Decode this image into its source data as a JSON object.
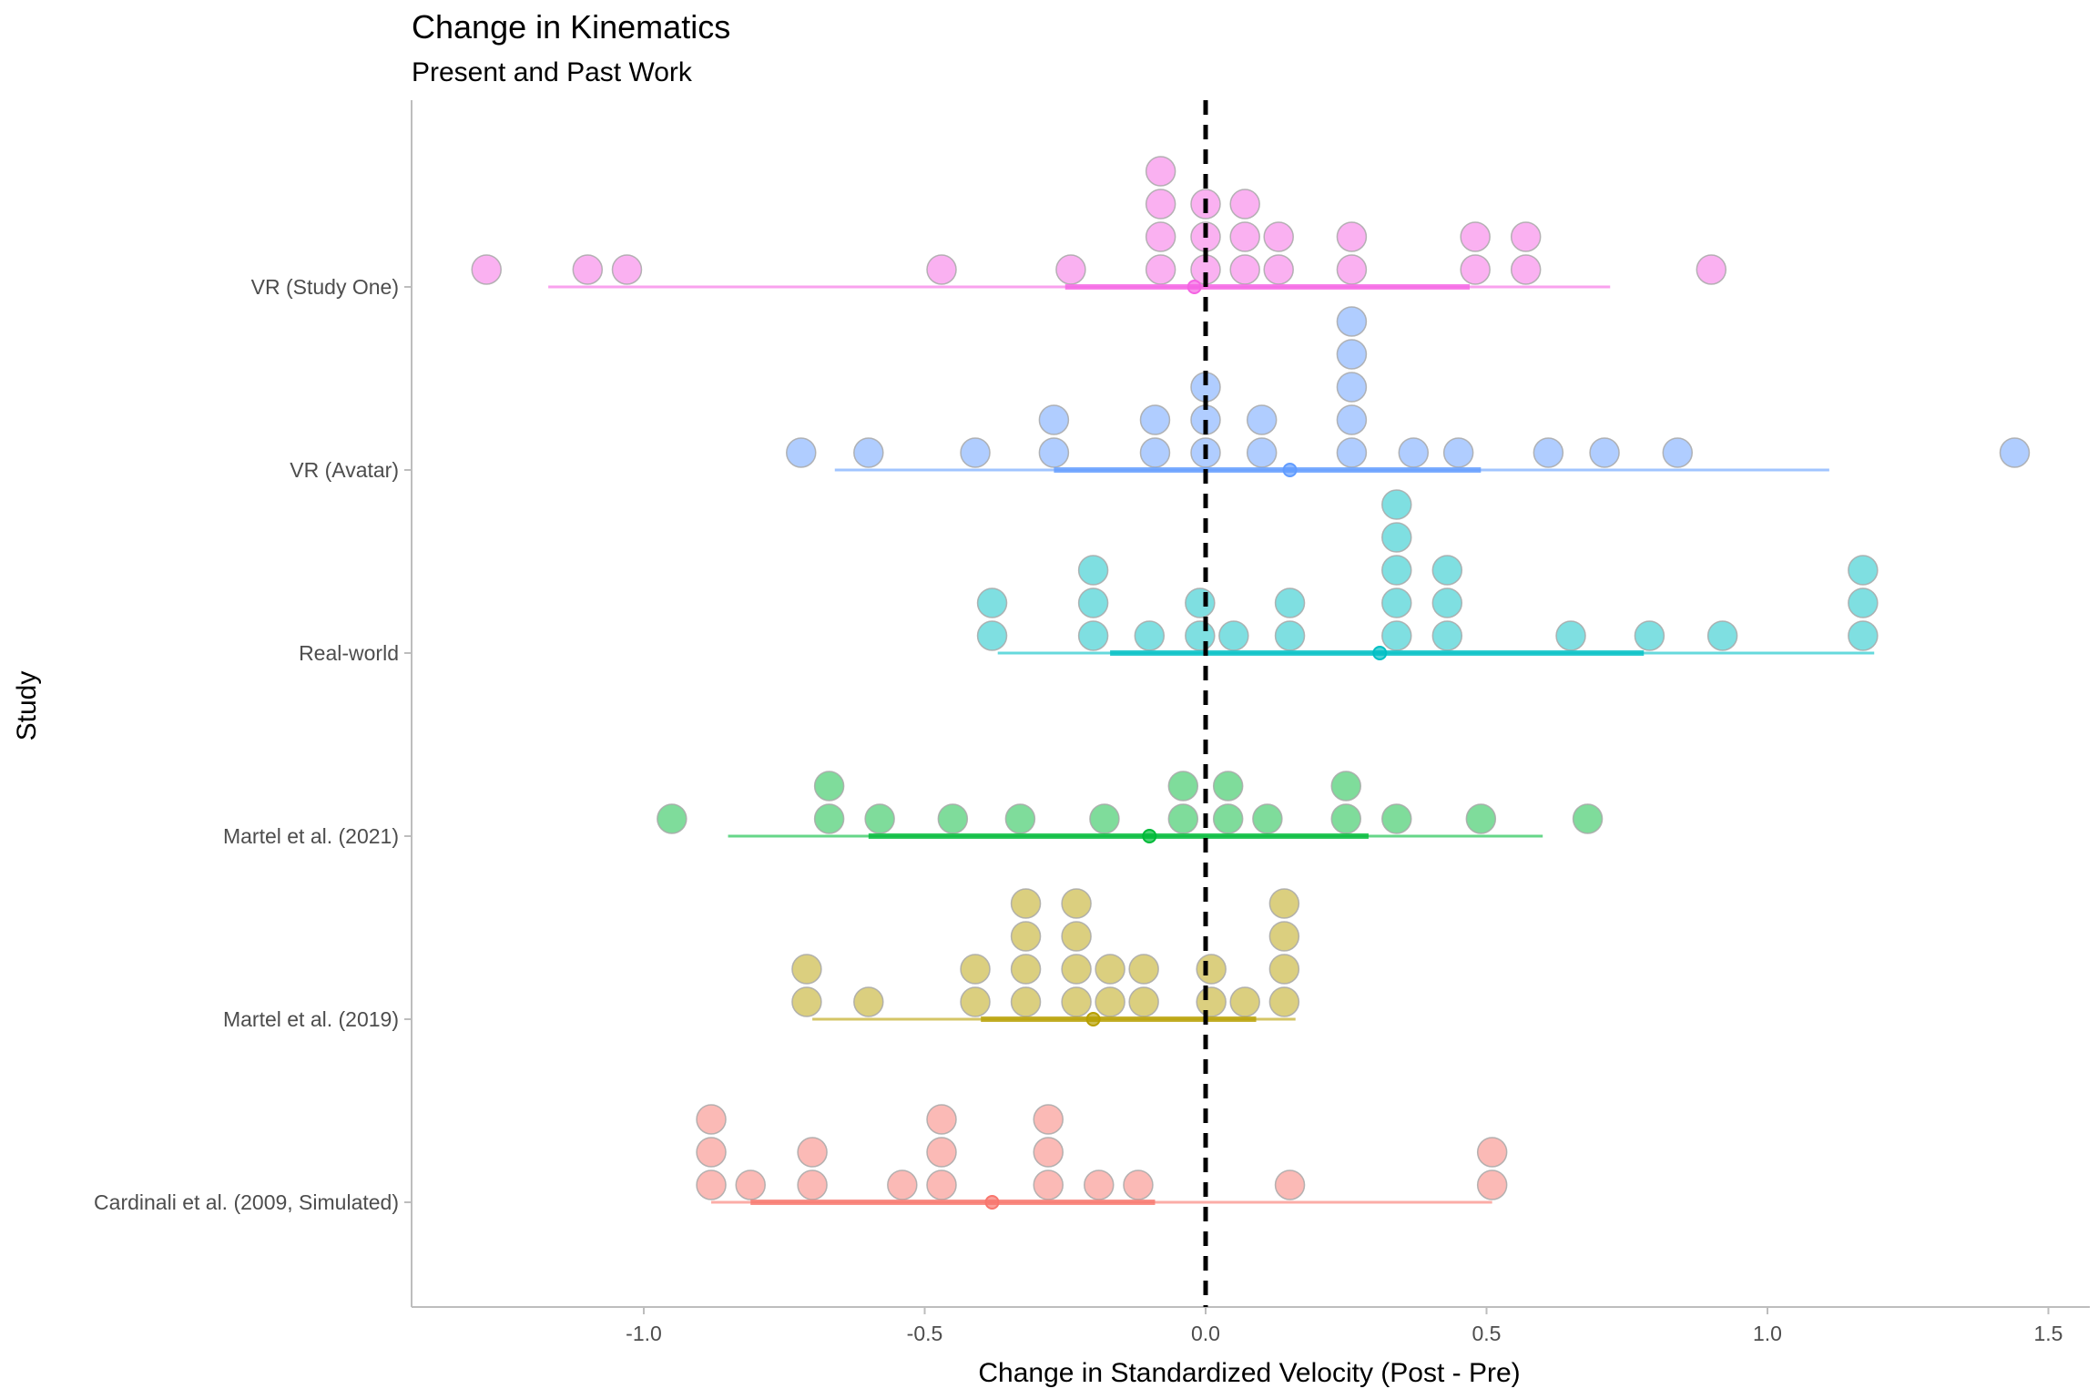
{
  "chart_data": {
    "type": "scatter",
    "title": "Change in Kinematics",
    "subtitle": "Present and Past Work",
    "xlabel": "Change in Standardized Velocity (Post - Pre)",
    "ylabel": "Study",
    "xlim": [
      -1.4,
      1.55
    ],
    "xticks": [
      -1.0,
      -0.5,
      0.0,
      0.5,
      1.0,
      1.5
    ],
    "xtick_labels": [
      "-1.0",
      "-0.5",
      "0.0",
      "0.5",
      "1.0",
      "1.5"
    ],
    "reference_line": {
      "x": 0.0,
      "style": "dashed",
      "color": "#000000"
    },
    "grid": false,
    "legend": "none",
    "series": [
      {
        "name": "Cardinali et al. (2009, Simulated)",
        "color": "#F8766D",
        "stacks": [
          {
            "x": -0.88,
            "n": 3
          },
          {
            "x": -0.81,
            "n": 1
          },
          {
            "x": -0.7,
            "n": 2
          },
          {
            "x": -0.54,
            "n": 1
          },
          {
            "x": -0.47,
            "n": 3
          },
          {
            "x": -0.28,
            "n": 3
          },
          {
            "x": -0.19,
            "n": 1
          },
          {
            "x": -0.12,
            "n": 1
          },
          {
            "x": 0.15,
            "n": 1
          },
          {
            "x": 0.51,
            "n": 2
          }
        ],
        "mean": -0.38,
        "inner_interval": [
          -0.81,
          -0.09
        ],
        "outer_interval": [
          -0.88,
          0.51
        ]
      },
      {
        "name": "Martel et al. (2019)",
        "color": "#B79F00",
        "stacks": [
          {
            "x": -0.71,
            "n": 2
          },
          {
            "x": -0.6,
            "n": 1
          },
          {
            "x": -0.41,
            "n": 2
          },
          {
            "x": -0.32,
            "n": 4
          },
          {
            "x": -0.23,
            "n": 4
          },
          {
            "x": -0.17,
            "n": 2
          },
          {
            "x": -0.11,
            "n": 2
          },
          {
            "x": 0.01,
            "n": 2
          },
          {
            "x": 0.07,
            "n": 1
          },
          {
            "x": 0.14,
            "n": 4
          }
        ],
        "mean": -0.2,
        "inner_interval": [
          -0.4,
          0.09
        ],
        "outer_interval": [
          -0.7,
          0.16
        ]
      },
      {
        "name": "Martel et al. (2021)",
        "color": "#00BA38",
        "stacks": [
          {
            "x": -0.95,
            "n": 1
          },
          {
            "x": -0.67,
            "n": 2
          },
          {
            "x": -0.58,
            "n": 1
          },
          {
            "x": -0.45,
            "n": 1
          },
          {
            "x": -0.33,
            "n": 1
          },
          {
            "x": -0.18,
            "n": 1
          },
          {
            "x": -0.04,
            "n": 2
          },
          {
            "x": 0.04,
            "n": 2
          },
          {
            "x": 0.11,
            "n": 1
          },
          {
            "x": 0.25,
            "n": 2
          },
          {
            "x": 0.34,
            "n": 1
          },
          {
            "x": 0.49,
            "n": 1
          },
          {
            "x": 0.68,
            "n": 1
          }
        ],
        "mean": -0.1,
        "inner_interval": [
          -0.6,
          0.29
        ],
        "outer_interval": [
          -0.85,
          0.6
        ]
      },
      {
        "name": "Real-world",
        "color": "#00BFC4",
        "stacks": [
          {
            "x": -0.38,
            "n": 2
          },
          {
            "x": -0.2,
            "n": 3
          },
          {
            "x": -0.1,
            "n": 1
          },
          {
            "x": -0.01,
            "n": 2
          },
          {
            "x": 0.05,
            "n": 1
          },
          {
            "x": 0.15,
            "n": 2
          },
          {
            "x": 0.34,
            "n": 5
          },
          {
            "x": 0.43,
            "n": 3
          },
          {
            "x": 0.65,
            "n": 1
          },
          {
            "x": 0.79,
            "n": 1
          },
          {
            "x": 0.92,
            "n": 1
          },
          {
            "x": 1.17,
            "n": 3
          }
        ],
        "mean": 0.31,
        "inner_interval": [
          -0.17,
          0.78
        ],
        "outer_interval": [
          -0.37,
          1.19
        ]
      },
      {
        "name": "VR (Avatar)",
        "color": "#619CFF",
        "stacks": [
          {
            "x": -0.72,
            "n": 1
          },
          {
            "x": -0.6,
            "n": 1
          },
          {
            "x": -0.41,
            "n": 1
          },
          {
            "x": -0.27,
            "n": 2
          },
          {
            "x": -0.09,
            "n": 2
          },
          {
            "x": 0.0,
            "n": 3
          },
          {
            "x": 0.1,
            "n": 2
          },
          {
            "x": 0.26,
            "n": 5
          },
          {
            "x": 0.37,
            "n": 1
          },
          {
            "x": 0.45,
            "n": 1
          },
          {
            "x": 0.61,
            "n": 1
          },
          {
            "x": 0.71,
            "n": 1
          },
          {
            "x": 0.84,
            "n": 1
          },
          {
            "x": 1.44,
            "n": 1
          }
        ],
        "mean": 0.15,
        "inner_interval": [
          -0.27,
          0.49
        ],
        "outer_interval": [
          -0.66,
          1.11
        ]
      },
      {
        "name": "VR (Study One)",
        "color": "#F564E3",
        "stacks": [
          {
            "x": -1.28,
            "n": 1
          },
          {
            "x": -1.1,
            "n": 1
          },
          {
            "x": -1.03,
            "n": 1
          },
          {
            "x": -0.47,
            "n": 1
          },
          {
            "x": -0.24,
            "n": 1
          },
          {
            "x": -0.08,
            "n": 4
          },
          {
            "x": 0.0,
            "n": 3
          },
          {
            "x": 0.07,
            "n": 3
          },
          {
            "x": 0.13,
            "n": 2
          },
          {
            "x": 0.26,
            "n": 2
          },
          {
            "x": 0.48,
            "n": 2
          },
          {
            "x": 0.57,
            "n": 2
          },
          {
            "x": 0.9,
            "n": 1
          }
        ],
        "mean": -0.02,
        "inner_interval": [
          -0.25,
          0.47
        ],
        "outer_interval": [
          -1.17,
          0.72
        ]
      }
    ]
  }
}
